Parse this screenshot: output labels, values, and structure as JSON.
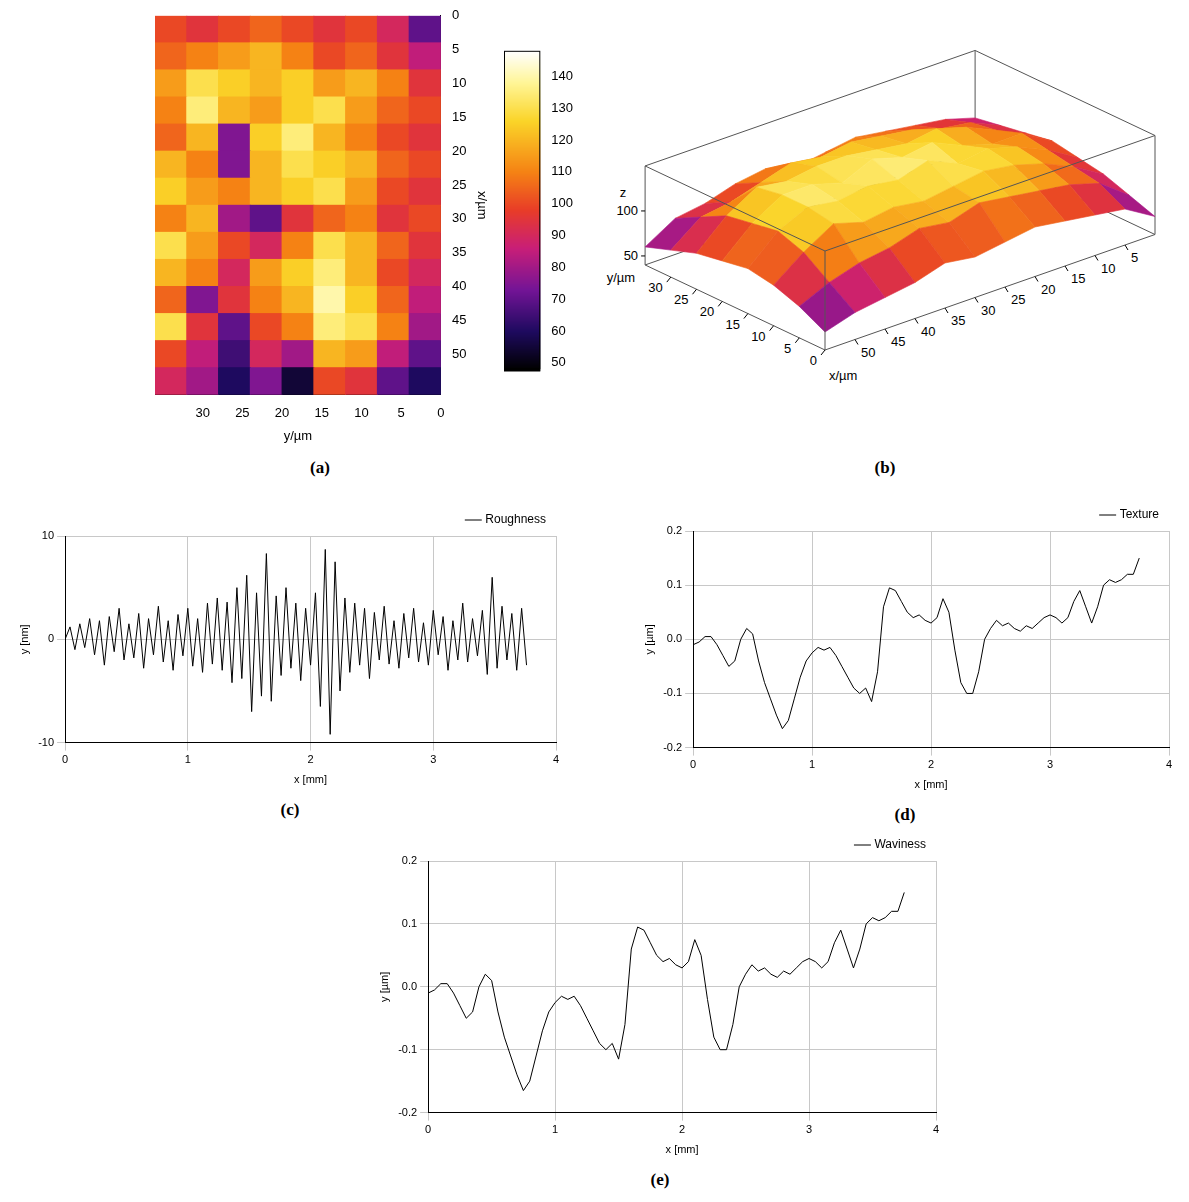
{
  "chart_data": [
    {
      "panel_label": "(a)",
      "type": "heatmap",
      "x": [
        2,
        6,
        10,
        14,
        18,
        22,
        26,
        30,
        34,
        38,
        42,
        46,
        50,
        54
      ],
      "y": [
        34,
        30,
        26,
        22,
        18,
        14,
        10,
        6,
        2
      ],
      "cells": [
        [
          100,
          95,
          100,
          105,
          100,
          95,
          100,
          90,
          70
        ],
        [
          105,
          110,
          115,
          120,
          110,
          100,
          105,
          95,
          85
        ],
        [
          115,
          130,
          125,
          120,
          125,
          115,
          120,
          110,
          95
        ],
        [
          110,
          135,
          120,
          115,
          125,
          130,
          115,
          105,
          100
        ],
        [
          105,
          120,
          75,
          125,
          135,
          120,
          110,
          100,
          95
        ],
        [
          120,
          110,
          75,
          120,
          130,
          125,
          120,
          105,
          100
        ],
        [
          125,
          115,
          110,
          120,
          125,
          130,
          115,
          100,
          95
        ],
        [
          110,
          120,
          80,
          70,
          95,
          105,
          110,
          95,
          100
        ],
        [
          130,
          115,
          100,
          90,
          110,
          130,
          120,
          105,
          95
        ],
        [
          120,
          110,
          90,
          115,
          125,
          135,
          120,
          100,
          90
        ],
        [
          105,
          75,
          95,
          110,
          120,
          140,
          125,
          105,
          85
        ],
        [
          130,
          95,
          70,
          100,
          110,
          135,
          130,
          110,
          80
        ],
        [
          100,
          85,
          65,
          90,
          80,
          120,
          115,
          85,
          70
        ],
        [
          90,
          80,
          60,
          75,
          55,
          100,
          95,
          70,
          60
        ]
      ],
      "xlabel": "x/µm",
      "ylabel": "y/µm",
      "xlim": [
        0,
        56
      ],
      "xticks": [
        0,
        5,
        10,
        15,
        20,
        25,
        30,
        35,
        40,
        45,
        50
      ],
      "ylim": [
        0,
        36
      ],
      "yticks": [
        0,
        5,
        10,
        15,
        20,
        25,
        30
      ],
      "colorbar": {
        "range": [
          48,
          148
        ],
        "ticks": [
          50,
          60,
          70,
          80,
          90,
          100,
          110,
          120,
          130,
          140
        ]
      }
    },
    {
      "panel_label": "(b)",
      "type": "surface3d",
      "x": [
        0,
        5,
        10,
        15,
        20,
        25,
        30,
        35,
        40,
        45,
        50,
        55
      ],
      "y": [
        0,
        5,
        10,
        15,
        20,
        25,
        30,
        35
      ],
      "z": [
        [
          60,
          70,
          80,
          85,
          90,
          85,
          80,
          75
        ],
        [
          80,
          95,
          100,
          105,
          110,
          100,
          95,
          85
        ],
        [
          85,
          105,
          115,
          120,
          110,
          115,
          100,
          90
        ],
        [
          90,
          110,
          125,
          130,
          120,
          125,
          110,
          95
        ],
        [
          95,
          115,
          130,
          125,
          135,
          120,
          115,
          100
        ],
        [
          90,
          120,
          125,
          140,
          130,
          125,
          120,
          95
        ],
        [
          85,
          110,
          120,
          130,
          140,
          130,
          115,
          90
        ],
        [
          90,
          115,
          125,
          135,
          125,
          130,
          120,
          100
        ],
        [
          80,
          105,
          120,
          130,
          135,
          125,
          110,
          95
        ],
        [
          75,
          100,
          130,
          135,
          135,
          130,
          100,
          85
        ],
        [
          70,
          90,
          110,
          120,
          115,
          110,
          95,
          80
        ],
        [
          60,
          75,
          85,
          90,
          85,
          80,
          70,
          60
        ]
      ],
      "xlabel": "x/µm",
      "ylabel": "y/µm",
      "zlabel": "z",
      "xlim": [
        0,
        55
      ],
      "xticks": [
        5,
        10,
        15,
        20,
        25,
        30,
        35,
        40,
        45,
        50
      ],
      "ylim": [
        0,
        35
      ],
      "yticks": [
        0,
        5,
        10,
        15,
        20,
        25,
        30
      ],
      "zlim": [
        40,
        150
      ],
      "zticks": [
        50,
        100
      ]
    },
    {
      "panel_label": "(c)",
      "type": "line",
      "x": [
        0,
        0.04,
        0.08,
        0.12,
        0.16,
        0.2,
        0.24,
        0.28,
        0.32,
        0.36,
        0.4,
        0.44,
        0.48,
        0.52,
        0.56,
        0.6,
        0.64,
        0.68,
        0.72,
        0.76,
        0.8,
        0.84,
        0.88,
        0.92,
        0.96,
        1,
        1.04,
        1.08,
        1.12,
        1.16,
        1.2,
        1.24,
        1.28,
        1.32,
        1.36,
        1.4,
        1.44,
        1.48,
        1.52,
        1.56,
        1.6,
        1.64,
        1.68,
        1.72,
        1.76,
        1.8,
        1.84,
        1.88,
        1.92,
        1.96,
        2,
        2.04,
        2.08,
        2.12,
        2.16,
        2.2,
        2.24,
        2.28,
        2.32,
        2.36,
        2.4,
        2.44,
        2.48,
        2.52,
        2.56,
        2.6,
        2.64,
        2.68,
        2.72,
        2.76,
        2.8,
        2.84,
        2.88,
        2.92,
        2.96,
        3,
        3.04,
        3.08,
        3.12,
        3.16,
        3.2,
        3.24,
        3.28,
        3.32,
        3.36,
        3.4,
        3.44,
        3.48,
        3.52,
        3.56,
        3.6,
        3.64,
        3.68,
        3.72,
        3.76
      ],
      "series": [
        {
          "name": "Roughness",
          "color": "#000000",
          "values": [
            0,
            1.2,
            -1.0,
            1.5,
            -0.8,
            2.0,
            -1.5,
            1.8,
            -2.5,
            2.2,
            -1.2,
            3.0,
            -2.0,
            1.5,
            -1.8,
            2.5,
            -2.8,
            2.0,
            -1.5,
            3.2,
            -2.2,
            1.8,
            -3.0,
            2.4,
            -1.6,
            3.0,
            -2.6,
            2.0,
            -3.2,
            3.5,
            -2.4,
            4.0,
            -3.0,
            3.6,
            -4.2,
            5.0,
            -3.8,
            6.2,
            -7.0,
            4.5,
            -5.5,
            8.3,
            -6.0,
            4.2,
            -3.5,
            5.0,
            -2.8,
            3.5,
            -4.0,
            3.0,
            -2.5,
            4.5,
            -6.5,
            8.7,
            -9.2,
            7.5,
            -5.0,
            4.0,
            -3.2,
            3.5,
            -2.5,
            3.0,
            -3.8,
            2.6,
            -2.0,
            3.2,
            -2.4,
            1.8,
            -2.8,
            2.5,
            -1.8,
            3.0,
            -2.2,
            1.6,
            -2.5,
            2.8,
            -1.5,
            2.2,
            -3.0,
            1.8,
            -2.0,
            3.5,
            -2.2,
            2.0,
            -1.6,
            2.8,
            -3.4,
            6.0,
            -2.8,
            3.2,
            -2.0,
            2.5,
            -3.0,
            3.0,
            -2.5
          ]
        }
      ],
      "xlabel": "x [mm]",
      "ylabel": "y [nm]",
      "xlim": [
        0,
        4
      ],
      "xticks": [
        0,
        1,
        2,
        3,
        4
      ],
      "ylim": [
        -10,
        10
      ],
      "yticks": [
        -10,
        0,
        10
      ],
      "grid": true,
      "legend": "upper right"
    },
    {
      "panel_label": "(d)",
      "type": "line",
      "x": [
        0,
        0.05,
        0.1,
        0.15,
        0.2,
        0.25,
        0.3,
        0.35,
        0.4,
        0.45,
        0.5,
        0.55,
        0.6,
        0.65,
        0.7,
        0.75,
        0.8,
        0.85,
        0.9,
        0.95,
        1,
        1.05,
        1.1,
        1.15,
        1.2,
        1.25,
        1.3,
        1.35,
        1.4,
        1.45,
        1.5,
        1.55,
        1.6,
        1.65,
        1.7,
        1.75,
        1.8,
        1.85,
        1.9,
        1.95,
        2,
        2.05,
        2.1,
        2.15,
        2.2,
        2.25,
        2.3,
        2.35,
        2.4,
        2.45,
        2.5,
        2.55,
        2.6,
        2.65,
        2.7,
        2.75,
        2.8,
        2.85,
        2.9,
        2.95,
        3,
        3.05,
        3.1,
        3.15,
        3.2,
        3.25,
        3.3,
        3.35,
        3.4,
        3.45,
        3.5,
        3.55,
        3.6,
        3.65,
        3.7,
        3.75
      ],
      "series": [
        {
          "name": "Texture",
          "color": "#000000",
          "values": [
            -0.01,
            -0.005,
            0.005,
            0.005,
            -0.01,
            -0.03,
            -0.05,
            -0.04,
            0,
            0.02,
            0.01,
            -0.04,
            -0.08,
            -0.11,
            -0.14,
            -0.165,
            -0.15,
            -0.11,
            -0.07,
            -0.04,
            -0.025,
            -0.015,
            -0.02,
            -0.015,
            -0.03,
            -0.05,
            -0.07,
            -0.09,
            -0.1,
            -0.09,
            -0.115,
            -0.06,
            0.06,
            0.095,
            0.09,
            0.07,
            0.05,
            0.04,
            0.045,
            0.035,
            0.03,
            0.04,
            0.075,
            0.05,
            -0.02,
            -0.08,
            -0.1,
            -0.1,
            -0.06,
            0,
            0.02,
            0.035,
            0.025,
            0.03,
            0.02,
            0.015,
            0.025,
            0.02,
            0.03,
            0.04,
            0.045,
            0.04,
            0.03,
            0.04,
            0.07,
            0.09,
            0.06,
            0.03,
            0.06,
            0.1,
            0.11,
            0.105,
            0.11,
            0.12,
            0.12,
            0.15
          ]
        }
      ],
      "xlabel": "x [mm]",
      "ylabel": "y [µm]",
      "xlim": [
        0,
        4
      ],
      "xticks": [
        0,
        1,
        2,
        3,
        4
      ],
      "ylim": [
        -0.2,
        0.2
      ],
      "yticks": [
        -0.2,
        -0.1,
        {
          "value": 0,
          "label": "0.0"
        },
        0.1,
        0.2
      ],
      "grid": true,
      "legend": "upper right"
    },
    {
      "panel_label": "(e)",
      "type": "line",
      "x": [
        0,
        0.05,
        0.1,
        0.15,
        0.2,
        0.25,
        0.3,
        0.35,
        0.4,
        0.45,
        0.5,
        0.55,
        0.6,
        0.65,
        0.7,
        0.75,
        0.8,
        0.85,
        0.9,
        0.95,
        1,
        1.05,
        1.1,
        1.15,
        1.2,
        1.25,
        1.3,
        1.35,
        1.4,
        1.45,
        1.5,
        1.55,
        1.6,
        1.65,
        1.7,
        1.75,
        1.8,
        1.85,
        1.9,
        1.95,
        2,
        2.05,
        2.1,
        2.15,
        2.2,
        2.25,
        2.3,
        2.35,
        2.4,
        2.45,
        2.5,
        2.55,
        2.6,
        2.65,
        2.7,
        2.75,
        2.8,
        2.85,
        2.9,
        2.95,
        3,
        3.05,
        3.1,
        3.15,
        3.2,
        3.25,
        3.3,
        3.35,
        3.4,
        3.45,
        3.5,
        3.55,
        3.6,
        3.65,
        3.7,
        3.75
      ],
      "series": [
        {
          "name": "Waviness",
          "color": "#000000",
          "values": [
            -0.01,
            -0.005,
            0.005,
            0.005,
            -0.01,
            -0.03,
            -0.05,
            -0.04,
            0,
            0.02,
            0.01,
            -0.04,
            -0.08,
            -0.11,
            -0.14,
            -0.165,
            -0.15,
            -0.11,
            -0.07,
            -0.04,
            -0.025,
            -0.015,
            -0.02,
            -0.015,
            -0.03,
            -0.05,
            -0.07,
            -0.09,
            -0.1,
            -0.09,
            -0.115,
            -0.06,
            0.06,
            0.095,
            0.09,
            0.07,
            0.05,
            0.04,
            0.045,
            0.035,
            0.03,
            0.04,
            0.075,
            0.05,
            -0.02,
            -0.08,
            -0.1,
            -0.1,
            -0.06,
            0,
            0.02,
            0.035,
            0.025,
            0.03,
            0.02,
            0.015,
            0.025,
            0.02,
            0.03,
            0.04,
            0.045,
            0.04,
            0.03,
            0.04,
            0.07,
            0.09,
            0.06,
            0.03,
            0.06,
            0.1,
            0.11,
            0.105,
            0.11,
            0.12,
            0.12,
            0.15
          ]
        }
      ],
      "xlabel": "x [mm]",
      "ylabel": "y [µm]",
      "xlim": [
        0,
        4
      ],
      "xticks": [
        0,
        1,
        2,
        3,
        4
      ],
      "ylim": [
        -0.2,
        0.2
      ],
      "yticks": [
        -0.2,
        -0.1,
        {
          "value": 0,
          "label": "0.0"
        },
        0.1,
        0.2
      ],
      "grid": true,
      "legend": "upper right"
    }
  ]
}
